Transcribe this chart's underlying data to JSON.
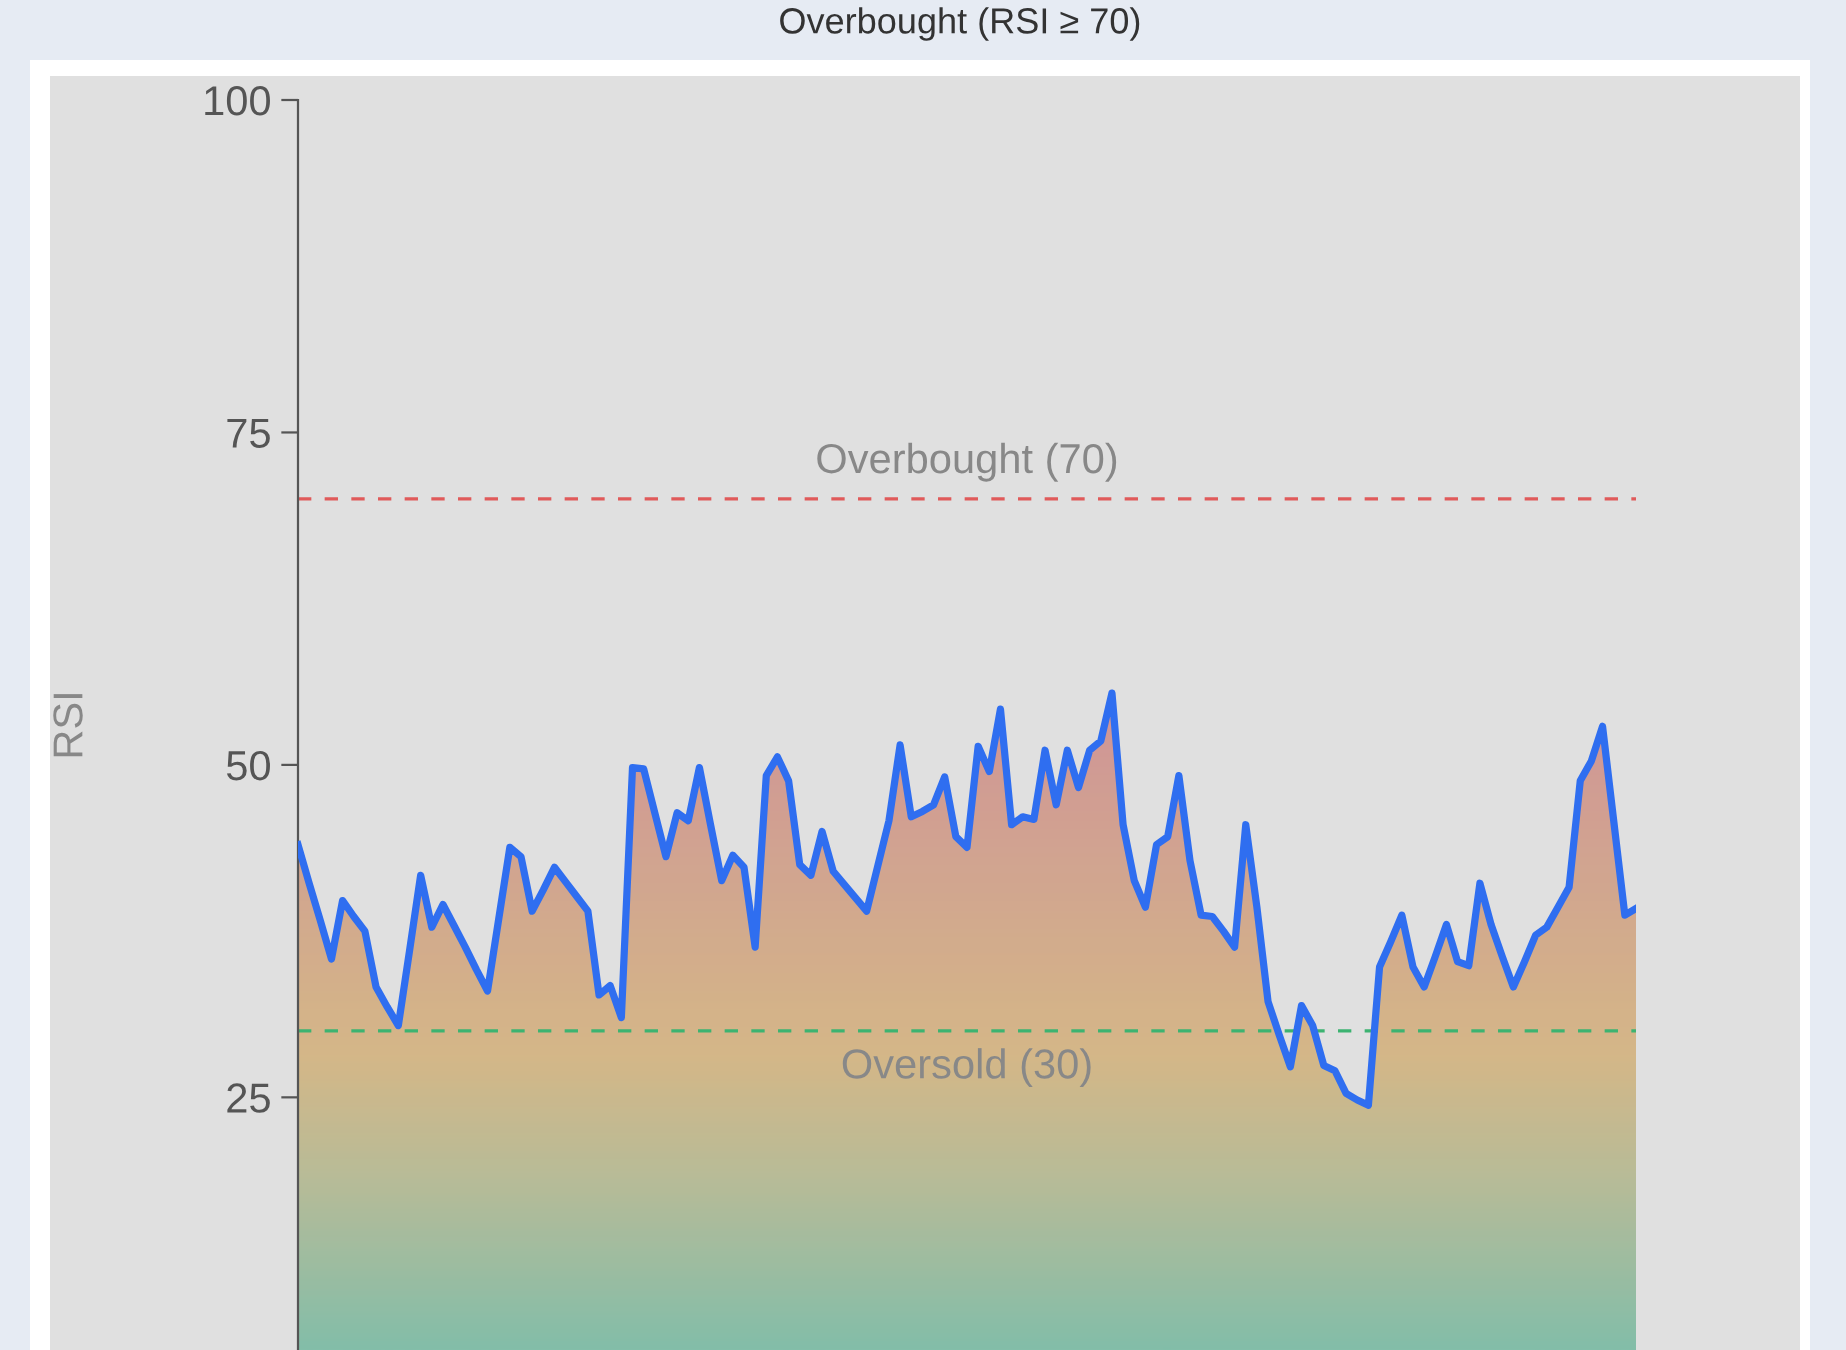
{
  "chart_data": {
    "type": "area",
    "title": "Overbought (RSI ≥ 70)",
    "ylabel": "RSI",
    "categories": [
      null,
      null,
      null,
      null,
      null,
      null,
      null,
      null,
      null,
      null,
      null,
      null,
      null,
      null,
      null,
      null,
      null,
      null,
      null,
      null,
      null,
      null,
      null,
      null,
      null,
      null,
      null,
      null,
      null,
      null,
      null,
      null,
      null,
      null,
      null,
      null,
      null,
      null,
      null,
      null,
      null,
      null,
      null,
      null,
      null,
      null,
      null,
      null,
      null,
      null,
      null,
      null,
      null,
      null,
      null,
      null,
      null,
      null,
      null,
      null,
      null,
      null,
      null,
      null,
      null,
      null,
      null,
      null,
      null,
      null,
      null,
      null,
      null,
      null,
      null,
      null,
      null,
      null,
      null,
      null,
      null,
      null,
      null,
      null,
      null,
      null,
      null,
      null,
      null,
      null,
      null,
      null,
      null,
      null,
      null,
      null,
      null,
      null,
      null,
      null,
      null,
      null,
      null,
      null,
      null,
      null,
      null,
      null,
      null,
      null,
      null,
      null,
      null,
      null,
      null,
      null,
      null,
      null,
      null,
      null,
      null
    ],
    "series": [
      {
        "color": "#2f6ef0",
        "values": [
          44.0,
          41.1,
          38.3,
          35.4,
          39.8,
          38.6,
          37.5,
          33.3,
          31.8,
          30.4,
          36.0,
          41.7,
          37.8,
          39.5,
          37.9,
          36.3,
          34.6,
          33.0,
          38.4,
          43.8,
          43.1,
          39.0,
          40.6,
          42.3,
          41.2,
          40.1,
          39.0,
          32.7,
          33.4,
          31.0,
          49.8,
          49.7,
          46.4,
          43.1,
          46.4,
          45.8,
          49.8,
          45.5,
          41.3,
          43.2,
          42.3,
          36.3,
          49.2,
          50.6,
          48.8,
          42.5,
          41.7,
          45.0,
          42.0,
          41.0,
          40.0,
          39.0,
          42.4,
          45.8,
          51.5,
          46.1,
          46.5,
          47.0,
          49.1,
          44.6,
          43.8,
          51.4,
          49.5,
          54.2,
          45.5,
          46.1,
          45.9,
          51.1,
          47.0,
          51.1,
          48.3,
          51.1,
          51.8,
          55.4,
          45.5,
          41.3,
          39.3,
          44.0,
          44.6,
          49.2,
          42.8,
          38.7,
          38.6,
          37.5,
          36.3,
          45.5,
          39.3,
          32.2,
          29.7,
          27.3,
          31.9,
          30.4,
          27.4,
          27.0,
          25.3,
          24.8,
          24.4,
          34.8,
          36.7,
          38.7,
          34.8,
          33.3,
          35.6,
          38.0,
          35.2,
          34.9,
          41.1,
          38.0,
          35.6,
          33.3,
          35.2,
          37.2,
          37.8,
          39.3,
          40.8,
          48.8,
          50.3,
          52.9,
          45.8,
          38.7,
          39.2
        ]
      }
    ],
    "ylim": [
      6,
      100
    ],
    "yticks": [
      25,
      50,
      75,
      100
    ],
    "tick_labels": "y",
    "ref_lines": [
      {
        "axis": "y",
        "value": 70,
        "label": "Overbought (70)",
        "color": "#e05a5a",
        "line_style": "dashed"
      },
      {
        "axis": "y",
        "value": 30,
        "label": "Oversold (30)",
        "color": "#3cb371",
        "line_style": "dashed"
      }
    ]
  }
}
